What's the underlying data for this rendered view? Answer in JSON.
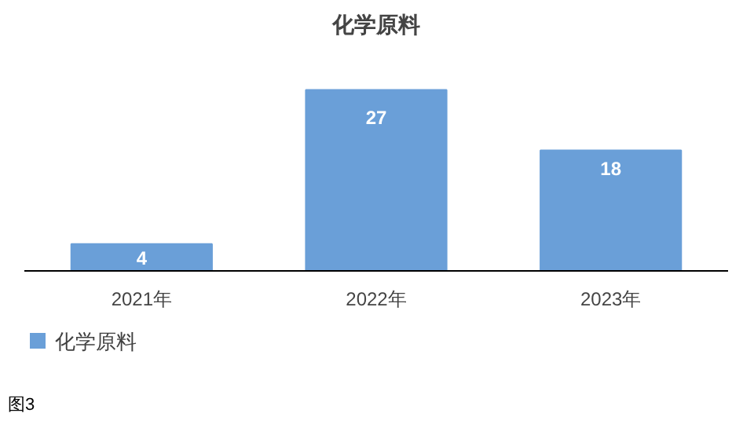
{
  "chart_data": {
    "type": "bar",
    "title": "化学原料",
    "categories": [
      "2021年",
      "2022年",
      "2023年"
    ],
    "series": [
      {
        "name": "化学原料",
        "color": "#6a9fd8",
        "values": [
          4,
          27,
          18
        ]
      }
    ],
    "data_labels": true,
    "legend": "bottom",
    "annotations": [
      "图3"
    ]
  }
}
